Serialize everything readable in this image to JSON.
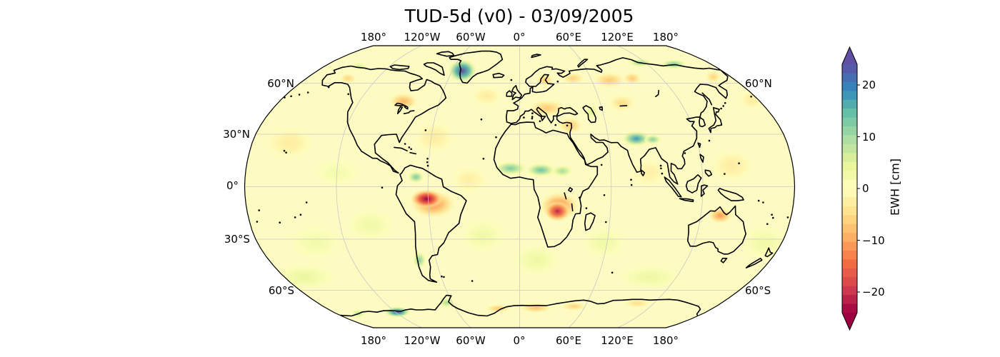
{
  "title": "TUD-5d (v0) - 03/09/2005",
  "axes": {
    "top": [
      "180°",
      "120°W",
      "60°W",
      "0°",
      "60°E",
      "120°E",
      "180°"
    ],
    "bottom": [
      "180°",
      "120°W",
      "60°W",
      "0°",
      "60°E",
      "120°E",
      "180°"
    ],
    "left": [
      "60°N",
      "30°N",
      "0°",
      "30°S",
      "60°S"
    ],
    "right": [
      "60°N",
      "60°S"
    ]
  },
  "colorbar": {
    "label": "EWH [cm]",
    "ticks": [
      "20",
      "10",
      "0",
      "−10",
      "−20"
    ]
  },
  "chart_data": {
    "type": "heatmap",
    "title": "TUD-5d (v0) - 03/09/2005",
    "projection": "Robinson",
    "field": "Equivalent Water Height anomaly",
    "units": "cm",
    "vmin": -24,
    "vmax": 24,
    "cmap": "Spectral",
    "extend": "both",
    "cmap_stops": [
      [
        0.0,
        "#9e0142"
      ],
      [
        0.1,
        "#d53e4f"
      ],
      [
        0.2,
        "#f46d43"
      ],
      [
        0.3,
        "#fdae61"
      ],
      [
        0.4,
        "#fee08b"
      ],
      [
        0.5,
        "#ffffbf"
      ],
      [
        0.6,
        "#e6f598"
      ],
      [
        0.7,
        "#abdda4"
      ],
      [
        0.8,
        "#66c2a5"
      ],
      [
        0.9,
        "#3288bd"
      ],
      [
        1.0,
        "#5e4fa2"
      ]
    ],
    "colorbar_ticks": [
      20,
      10,
      0,
      -10,
      -20
    ],
    "grid_parallels": [
      60,
      30,
      0,
      -30,
      -60
    ],
    "grid_meridians": [
      -120,
      -60,
      0,
      60,
      120
    ],
    "anomalies": [
      [
        "ocean-mottle-ne-pacific",
        -155,
        25,
        16,
        9,
        -3
      ],
      [
        "ocean-mottle-e-pacific",
        -120,
        8,
        14,
        8,
        2.5
      ],
      [
        "ocean-mottle-se-pacific",
        -100,
        -22,
        16,
        9,
        3
      ],
      [
        "ocean-mottle-s-pacific",
        -140,
        -32,
        18,
        10,
        2.5
      ],
      [
        "ocean-mottle-n-atlantic",
        -58,
        28,
        14,
        9,
        -3
      ],
      [
        "ocean-mottle-eq-atlantic",
        -33,
        4,
        12,
        8,
        -2.5
      ],
      [
        "ocean-mottle-s-atlantic",
        -25,
        -28,
        15,
        10,
        3
      ],
      [
        "ocean-mottle-se-atlantic",
        12,
        -42,
        16,
        9,
        3.5
      ],
      [
        "ocean-mottle-s-indian",
        58,
        -32,
        15,
        9,
        3
      ],
      [
        "ocean-mottle-n-indian",
        85,
        8,
        12,
        8,
        -2.5
      ],
      [
        "ocean-mottle-w-pacific",
        140,
        12,
        14,
        9,
        -3
      ],
      [
        "ocean-mottle-sw-pacific",
        168,
        -32,
        16,
        10,
        3
      ],
      [
        "ocean-mottle-southern-1",
        -165,
        -52,
        24,
        8,
        4
      ],
      [
        "ocean-mottle-southern-2",
        100,
        -52,
        24,
        7,
        3.5
      ],
      [
        "ocean-mottle-n-atlantic-2",
        -25,
        52,
        12,
        6,
        -3
      ],
      [
        "ocean-mottle-n-pacific-2",
        175,
        50,
        10,
        6,
        -3
      ],
      [
        "greenland-positive",
        -51,
        68,
        13,
        8,
        25
      ],
      [
        "canada-negative",
        -87,
        49,
        11,
        5,
        -9
      ],
      [
        "alaska-negative",
        -145,
        63,
        7,
        3.5,
        -6
      ],
      [
        "beaufort-positive",
        -148,
        71,
        7,
        3,
        6
      ],
      [
        "amazon-negative-halo",
        -57,
        -10,
        15,
        8,
        -12
      ],
      [
        "amazon-negative-core",
        -61,
        -7,
        11,
        5.5,
        -25
      ],
      [
        "n-south-america-positive",
        -68,
        5.5,
        5.5,
        3.5,
        13
      ],
      [
        "patagonia-positive",
        -72,
        -42,
        5,
        5,
        12
      ],
      [
        "sahel-west-positive",
        -6,
        10.5,
        11,
        4,
        13
      ],
      [
        "sahel-east-positive",
        14,
        9.5,
        10,
        4,
        14
      ],
      [
        "sudan-positive",
        28,
        9,
        7,
        3.5,
        10
      ],
      [
        "zambezi-negative-halo",
        26,
        -11,
        13,
        8,
        -13
      ],
      [
        "zambezi-negative-core",
        25,
        -14,
        9,
        6,
        -21
      ],
      [
        "europe-negative",
        20,
        45,
        14,
        5,
        -7
      ],
      [
        "middle-east-negative",
        35,
        35,
        9,
        5,
        -7
      ],
      [
        "scandinavia-negative",
        21,
        62,
        8,
        4,
        -7
      ],
      [
        "nw-russia-negative",
        45,
        63,
        10,
        4,
        -6
      ],
      [
        "kazakhstan-negative",
        76,
        48,
        10,
        5,
        -5
      ],
      [
        "caspian-positive",
        52,
        43,
        5,
        4,
        6
      ],
      [
        "north-india-positive",
        79,
        27.5,
        10,
        4.5,
        18
      ],
      [
        "himalaya-east-positive",
        90,
        27,
        6,
        3,
        12
      ],
      [
        "west-siberia-negative",
        75,
        62,
        14,
        5,
        -7
      ],
      [
        "central-siberia-negative",
        95,
        63,
        8,
        4,
        -7
      ],
      [
        "chukotka-negative",
        165,
        64,
        7,
        4,
        -6
      ],
      [
        "laptev-coast-positive",
        115,
        73.5,
        12,
        3,
        11
      ],
      [
        "east-siberian-coast-positive",
        145,
        72.5,
        12,
        3.5,
        13
      ],
      [
        "north-australia-negative",
        133,
        -16.5,
        8,
        4.5,
        -11
      ],
      [
        "west-antarctica-positive",
        -118,
        -74.5,
        13,
        4,
        24
      ],
      [
        "ross-sea-positive",
        -158,
        -75.5,
        7,
        3,
        9
      ],
      [
        "antarctic-peninsula-positive",
        -65,
        -68,
        7,
        3.5,
        10
      ],
      [
        "east-antarctica-negative-1",
        -20,
        -72,
        12,
        3,
        -7
      ],
      [
        "east-antarctica-negative-2",
        15,
        -71.5,
        15,
        3.5,
        -8
      ],
      [
        "east-antarctica-negative-3",
        50,
        -70.5,
        12,
        3,
        -6
      ],
      [
        "wilkes-land-negative",
        105,
        -68.5,
        12,
        3,
        -5
      ]
    ]
  }
}
